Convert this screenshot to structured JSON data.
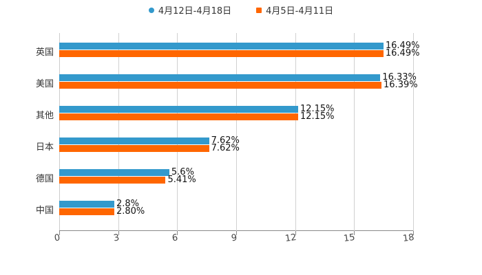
{
  "chart_data": {
    "type": "bar",
    "orientation": "horizontal",
    "categories": [
      "英国",
      "美国",
      "其他",
      "日本",
      "德国",
      "中国"
    ],
    "series": [
      {
        "name": "4月12日-4月18日",
        "color": "#3399cc",
        "values": [
          16.49,
          16.33,
          12.15,
          7.62,
          5.6,
          2.8
        ],
        "labels": [
          "16.49%",
          "16.33%",
          "12.15%",
          "7.62%",
          "5.6%",
          "2.8%"
        ]
      },
      {
        "name": "4月5日-4月11日",
        "color": "#ff6600",
        "values": [
          16.49,
          16.39,
          12.15,
          7.62,
          5.41,
          2.8
        ],
        "labels": [
          "16.49%",
          "16.39%",
          "12.15%",
          "7.62%",
          "5.41%",
          "2.80%"
        ]
      }
    ],
    "title": "",
    "xlabel": "",
    "ylabel": "",
    "xlim": [
      0,
      18
    ],
    "xticks": [
      "0",
      "3",
      "6",
      "9",
      "12",
      "15",
      "18"
    ],
    "grid": true,
    "legend_position": "top"
  },
  "legend": {
    "item0": "4月12日-4月18日",
    "item1": "4月5日-4月11日"
  }
}
